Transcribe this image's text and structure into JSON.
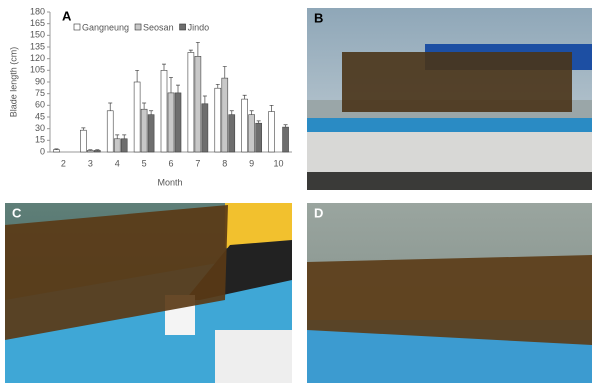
{
  "chart_data": {
    "type": "bar",
    "panel_label": "A",
    "x_label": "Month",
    "y_label": "Blade length (cm)",
    "categories": [
      "2",
      "3",
      "4",
      "5",
      "6",
      "7",
      "8",
      "9",
      "10"
    ],
    "series": [
      {
        "name": "Gangneung",
        "color": "#ffffff",
        "values": [
          3,
          28,
          53,
          90,
          105,
          128,
          82,
          68,
          52
        ],
        "errors": [
          1,
          3,
          10,
          15,
          8,
          3,
          5,
          5,
          8
        ]
      },
      {
        "name": "Seosan",
        "color": "#c8c8c8",
        "values": [
          null,
          2,
          17,
          55,
          76,
          123,
          95,
          48,
          null
        ],
        "errors": [
          null,
          1,
          5,
          8,
          20,
          18,
          15,
          5,
          null
        ]
      },
      {
        "name": "Jindo",
        "color": "#6e6e6e",
        "values": [
          null,
          2,
          17,
          48,
          76,
          62,
          48,
          37,
          32
        ],
        "errors": [
          null,
          1,
          5,
          5,
          10,
          10,
          5,
          3,
          3
        ]
      }
    ],
    "ylim": [
      0,
      180
    ],
    "yticks": [
      0,
      15,
      30,
      45,
      60,
      75,
      90,
      105,
      120,
      135,
      150,
      165,
      180
    ]
  },
  "photos": [
    {
      "label": "B"
    },
    {
      "label": "C"
    },
    {
      "label": "D"
    }
  ]
}
